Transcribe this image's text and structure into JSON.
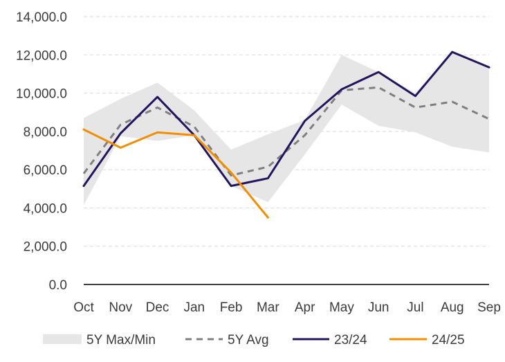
{
  "chart_data": {
    "type": "line",
    "categories": [
      "Oct",
      "Nov",
      "Dec",
      "Jan",
      "Feb",
      "Mar",
      "Apr",
      "May",
      "Jun",
      "Jul",
      "Aug",
      "Sep"
    ],
    "y_ticks": [
      "0.0",
      "2,000.0",
      "4,000.0",
      "6,000.0",
      "8,000.0",
      "10,000.0",
      "12,000.0",
      "14,000.0"
    ],
    "ylim": [
      0,
      14000
    ],
    "grid": "horizontal dashed",
    "legend_position": "bottom",
    "band": {
      "name": "5Y Max/Min",
      "color": "#e6e6e6",
      "max": [
        8700,
        9700,
        10550,
        9100,
        7050,
        7850,
        8600,
        12000,
        11100,
        10000,
        12100,
        11400
      ],
      "min": [
        4150,
        7750,
        7500,
        7800,
        5150,
        4300,
        6800,
        9400,
        8300,
        7950,
        7200,
        6900
      ]
    },
    "series": [
      {
        "name": "5Y Avg",
        "color": "#7f7f7f",
        "style": "dashed",
        "values": [
          5800,
          8350,
          9250,
          8250,
          5700,
          6150,
          7800,
          10150,
          10300,
          9250,
          9550,
          8650
        ]
      },
      {
        "name": "23/24",
        "color": "#24135f",
        "style": "solid",
        "values": [
          5150,
          7900,
          9800,
          7800,
          5150,
          5550,
          8550,
          10200,
          11100,
          9850,
          12150,
          11350
        ]
      },
      {
        "name": "24/25",
        "color": "#f28e00",
        "style": "solid",
        "values": [
          8100,
          7150,
          7950,
          7800,
          5850,
          3500,
          null,
          null,
          null,
          null,
          null,
          null
        ]
      }
    ]
  }
}
